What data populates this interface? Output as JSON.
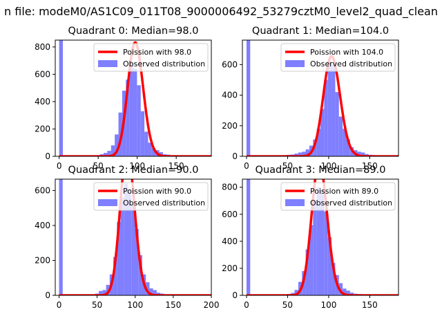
{
  "suptitle": "n file: modeM0/AS1C09_011T08_9000006492_53279cztM0_level2_quad_clean",
  "colors": {
    "hist": "#7f7fff",
    "poisson": "#ff0000",
    "axis": "#000000"
  },
  "chart_data": [
    {
      "type": "bar",
      "title": "Quadrant 0: Median=98.0",
      "median": 98.0,
      "xlim": [
        -5,
        195
      ],
      "ylim": [
        0,
        850
      ],
      "xticks": [
        0,
        50,
        100,
        150
      ],
      "yticks": [
        0,
        200,
        400,
        600,
        800
      ],
      "legend": [
        "Poission with 98.0",
        "Observed distribution"
      ],
      "hist": {
        "bin_width": 4.75,
        "bin_starts": [
          0,
          23.75,
          28.5,
          33.25,
          38,
          42.75,
          47.5,
          52.25,
          57,
          61.75,
          66.5,
          71.25,
          76,
          80.75,
          85.5,
          90.25,
          95,
          99.75,
          104.5,
          109.25,
          114,
          118.75,
          123.5,
          128.25,
          133,
          137.75,
          142.5,
          147.25,
          152,
          156.75,
          161.5,
          166.25,
          171,
          175.75,
          180.5,
          185.25
        ],
        "counts": [
          850,
          3,
          3,
          4,
          4,
          6,
          8,
          15,
          25,
          40,
          80,
          160,
          320,
          480,
          560,
          690,
          640,
          520,
          330,
          180,
          100,
          60,
          45,
          30,
          15,
          12,
          6,
          4,
          3,
          3,
          2,
          2,
          1,
          1,
          1,
          1
        ]
      }
    },
    {
      "type": "bar",
      "title": "Quadrant 1: Median=104.0",
      "median": 104.0,
      "xlim": [
        -5,
        185
      ],
      "ylim": [
        0,
        760
      ],
      "xticks": [
        0,
        50,
        100,
        150
      ],
      "yticks": [
        0,
        200,
        400,
        600
      ],
      "legend": [
        "Poission with 104.0",
        "Observed distribution"
      ],
      "hist": {
        "bin_width": 4.5,
        "bin_starts": [
          0,
          27,
          31.5,
          36,
          40.5,
          45,
          49.5,
          54,
          58.5,
          63,
          67.5,
          72,
          76.5,
          81,
          85.5,
          90,
          94.5,
          99,
          103.5,
          108,
          112.5,
          117,
          121.5,
          126,
          130.5,
          135,
          139.5,
          144,
          148.5,
          153,
          157.5,
          162,
          166.5,
          171,
          175.5
        ],
        "counts": [
          760,
          2,
          3,
          4,
          5,
          8,
          10,
          12,
          18,
          25,
          30,
          45,
          70,
          110,
          180,
          310,
          500,
          620,
          600,
          420,
          260,
          180,
          110,
          60,
          40,
          30,
          25,
          15,
          10,
          8,
          6,
          4,
          3,
          2,
          1
        ]
      }
    },
    {
      "type": "bar",
      "title": "Quadrant 2: Median=90.0",
      "median": 90.0,
      "xlim": [
        -5,
        200
      ],
      "ylim": [
        0,
        665
      ],
      "xticks": [
        0,
        50,
        100,
        150,
        200
      ],
      "yticks": [
        0,
        200,
        400,
        600
      ],
      "legend": [
        "Poission with 90.0",
        "Observed distribution"
      ],
      "hist": {
        "bin_width": 4.75,
        "bin_starts": [
          0,
          23.75,
          28.5,
          33.25,
          38,
          42.75,
          47.5,
          52.25,
          57,
          61.75,
          66.5,
          71.25,
          76,
          80.75,
          85.5,
          90.25,
          95,
          99.75,
          104.5,
          109.25,
          114,
          118.75,
          123.5,
          128.25,
          133,
          137.75,
          142.5,
          147.25,
          152,
          156.75,
          161.5,
          166.25,
          171,
          175.75,
          180.5,
          185.25
        ],
        "counts": [
          665,
          2,
          2,
          3,
          4,
          6,
          10,
          25,
          30,
          60,
          120,
          220,
          420,
          560,
          640,
          610,
          520,
          380,
          230,
          120,
          75,
          40,
          30,
          15,
          10,
          6,
          5,
          4,
          3,
          2,
          2,
          1,
          1,
          1,
          1,
          1
        ]
      }
    },
    {
      "type": "bar",
      "title": "Quadrant 3: Median=89.0",
      "median": 89.0,
      "xlim": [
        -5,
        185
      ],
      "ylim": [
        0,
        860
      ],
      "xticks": [
        0,
        50,
        100,
        150
      ],
      "yticks": [
        0,
        200,
        400,
        600,
        800
      ],
      "legend": [
        "Poission with 89.0",
        "Observed distribution"
      ],
      "hist": {
        "bin_width": 4.5,
        "bin_starts": [
          0,
          27,
          31.5,
          36,
          40.5,
          45,
          49.5,
          54,
          58.5,
          63,
          67.5,
          72,
          76.5,
          81,
          85.5,
          90,
          94.5,
          99,
          103.5,
          108,
          112.5,
          117,
          121.5,
          126,
          130.5,
          135,
          139.5,
          144,
          148.5,
          153,
          157.5,
          162,
          166.5,
          171,
          175.5
        ],
        "counts": [
          860,
          2,
          3,
          4,
          5,
          7,
          10,
          18,
          40,
          100,
          180,
          340,
          520,
          700,
          800,
          780,
          620,
          430,
          240,
          150,
          90,
          50,
          35,
          20,
          12,
          10,
          8,
          5,
          3,
          3,
          2,
          2,
          1,
          1,
          1
        ]
      }
    }
  ]
}
